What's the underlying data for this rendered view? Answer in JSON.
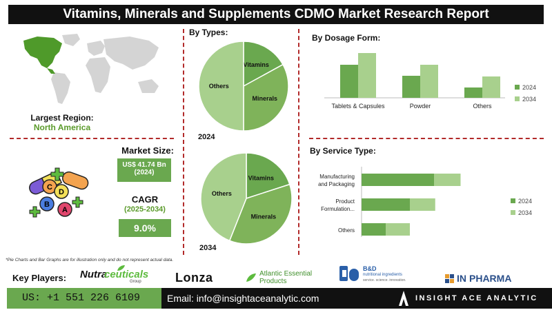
{
  "title": "Vitamins, Minerals and Supplements CDMO Market Research Report",
  "region": {
    "label": "Largest Region:",
    "value": "North America"
  },
  "market_size": {
    "label": "Market Size:",
    "value": "US$ 41.74 Bn",
    "year": "(2024)"
  },
  "cagr": {
    "label": "CAGR",
    "period": "(2025-2034)",
    "value": "9.0%"
  },
  "types": {
    "title": "By Types:",
    "year_2024": "2024",
    "year_2034": "2034"
  },
  "dosage": {
    "title": "By  Dosage Form:"
  },
  "service": {
    "title": "By Service Type:"
  },
  "disclaimer": "*Pie Charts and Bar Graphs are for illustration only and do not represent actual data.",
  "key_players": {
    "label": "Key Players:",
    "nutra_a": "Nutra",
    "nutra_b": "ceuticals",
    "nutra_sub": "Group",
    "lonza": "Lonza",
    "atlantic": "Atlantic Essential",
    "atlantic_sub": "Products",
    "bd": "B&D",
    "bd_sub": "nutritional ingredients",
    "bd_tag": "service. science. innovation.",
    "inpharma_a": "IN",
    "inpharma_b": "PHARMA"
  },
  "footer": {
    "phone": "US: +1 551 226 6109",
    "email": "Email: info@insightaceanalytic.com",
    "brand": "INSIGHT ACE ANALYTIC"
  },
  "colors": {
    "dark_green": "#6aa84f",
    "light_green": "#a8d08d",
    "mid_green": "#7fb35a",
    "accent_red": "#b22a2a"
  },
  "chart_data": [
    {
      "type": "pie",
      "title": "2024",
      "categories": [
        "Vitamins",
        "Minerals",
        "Others"
      ],
      "values": [
        17,
        33,
        50
      ]
    },
    {
      "type": "pie",
      "title": "2034",
      "categories": [
        "Vitamins",
        "Minerals",
        "Others"
      ],
      "values": [
        20,
        36,
        44
      ]
    },
    {
      "type": "bar",
      "title": "By  Dosage Form:",
      "categories": [
        "Tablets & Capsules",
        "Powder",
        "Others"
      ],
      "series": [
        {
          "name": "2024",
          "values": [
            48,
            32,
            15
          ]
        },
        {
          "name": "2034",
          "values": [
            65,
            48,
            31
          ]
        }
      ],
      "ylim": [
        0,
        70
      ],
      "legend": "right"
    },
    {
      "type": "bar",
      "orientation": "horizontal",
      "stacked": true,
      "title": "By Service Type:",
      "categories": [
        "Manufacturing and Packaging",
        "Product Formulation...",
        "Others"
      ],
      "series": [
        {
          "name": "2024",
          "values": [
            60,
            40,
            20
          ]
        },
        {
          "name": "2034",
          "values": [
            82,
            61,
            40
          ]
        }
      ],
      "legend": "right"
    }
  ]
}
